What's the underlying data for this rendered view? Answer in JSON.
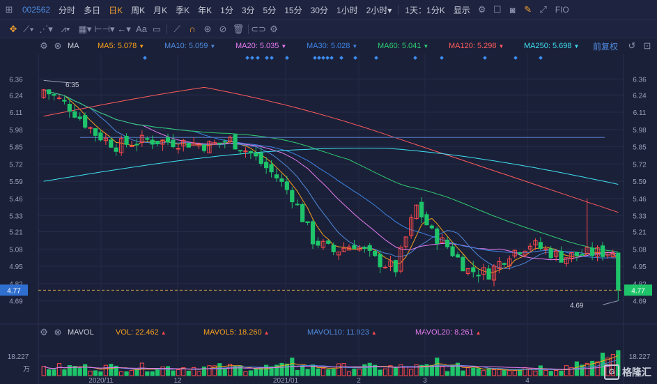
{
  "topbar": {
    "code": "002562",
    "periods": [
      "分时",
      "多日",
      "日K",
      "周K",
      "月K",
      "季K",
      "年K",
      "1分",
      "3分",
      "5分",
      "15分",
      "30分",
      "1小时",
      "2小时"
    ],
    "active_period": "日K",
    "two_hour_arrow": "▾",
    "combo": "1天：1分K",
    "display": "显示",
    "fio": "FIO"
  },
  "toolbar": {
    "font_label": "Aa"
  },
  "ma": {
    "label": "MA",
    "items": [
      {
        "name": "MA5",
        "value": "5.078",
        "color": "#f7a21b"
      },
      {
        "name": "MA10",
        "value": "5.059",
        "color": "#4e8bdc"
      },
      {
        "name": "MA20",
        "value": "5.035",
        "color": "#e57cf0"
      },
      {
        "name": "MA30",
        "value": "5.028",
        "color": "#3d86e6"
      },
      {
        "name": "MA60",
        "value": "5.041",
        "color": "#2ecc71"
      },
      {
        "name": "MA120",
        "value": "5.298",
        "color": "#ff5b5b"
      },
      {
        "name": "MA250",
        "value": "5.698",
        "color": "#3ee0f0"
      }
    ],
    "fuquan": "前复权"
  },
  "vol": {
    "label": "MAVOL",
    "items": [
      {
        "name": "VOL",
        "value": "22.462",
        "color": "#f7a21b"
      },
      {
        "name": "MAVOL5",
        "value": "18.260",
        "color": "#f7a21b"
      },
      {
        "name": "MAVOL10",
        "value": "11.923",
        "color": "#4e8bdc"
      },
      {
        "name": "MAVOL20",
        "value": "8.261",
        "color": "#e57cf0"
      }
    ]
  },
  "chart_data": {
    "type": "candlestick",
    "price_ticks": [
      "6.36",
      "6.24",
      "6.11",
      "5.98",
      "5.85",
      "5.72",
      "5.59",
      "5.46",
      "5.33",
      "5.21",
      "5.08",
      "4.95",
      "4.82",
      "4.69"
    ],
    "current_price": "4.77",
    "high_marker": "6.35",
    "low_marker": "4.69",
    "volume_tick": "18.227",
    "volume_unit": "万",
    "x_labels": [
      "2020/11",
      "12",
      "2021/01",
      "2",
      "3",
      "4"
    ],
    "ylim": [
      4.63,
      6.42
    ],
    "series_colors": {
      "up": "#ff4a4a",
      "down": "#1fc46a"
    }
  },
  "watermark": "格隆汇"
}
